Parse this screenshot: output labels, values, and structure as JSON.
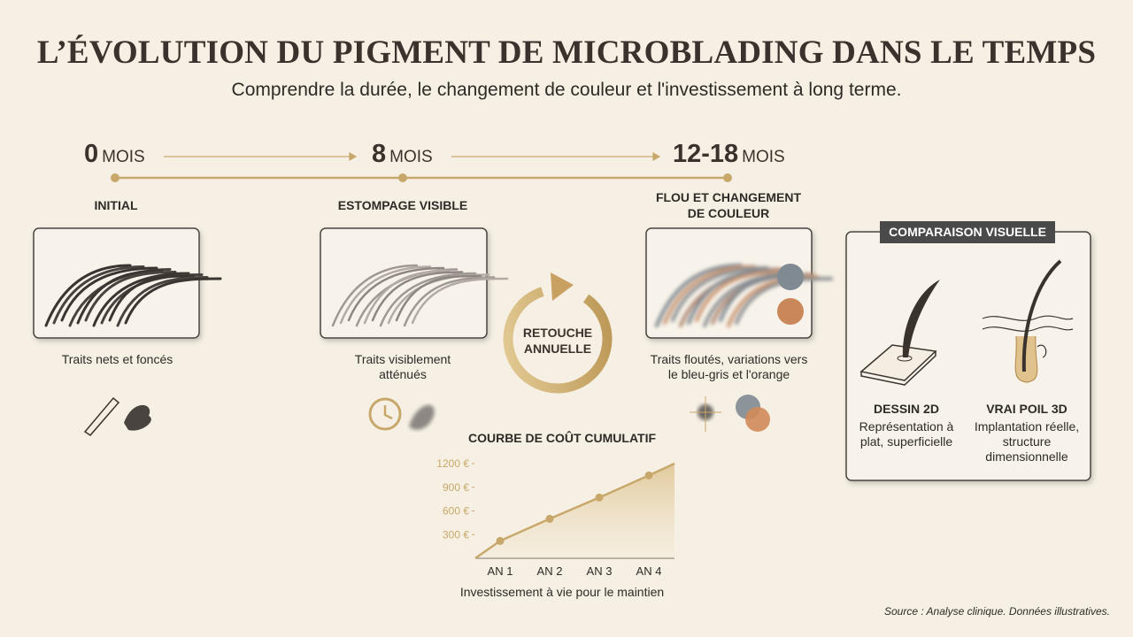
{
  "header": {
    "title": "L’ÉVOLUTION DU PIGMENT DE MICROBLADING DANS LE TEMPS",
    "subtitle": "Comprendre la durée, le changement de couleur et l'investissement à long terme."
  },
  "timeline": [
    {
      "number": "0",
      "unit": "MOIS",
      "label": "INITIAL",
      "caption": "Traits nets et foncés"
    },
    {
      "number": "8",
      "unit": "MOIS",
      "label": "ESTOMPAGE VISIBLE",
      "caption": "Traits visiblement atténués"
    },
    {
      "number": "12-18",
      "unit": "MOIS",
      "label": "FLOU ET CHANGEMENT DE COULEUR",
      "caption": "Traits floutés, variations vers le bleu-gris et l'orange"
    }
  ],
  "retouch": "RETOUCHE ANNUELLE",
  "comparison": {
    "title": "COMPARAISON VISUELLE",
    "items": [
      {
        "title": "DESSIN 2D",
        "text": "Représentation à plat, superficielle"
      },
      {
        "title": "VRAI POIL 3D",
        "text": "Implantation réelle, structure dimensionnelle"
      }
    ]
  },
  "chart_data": {
    "type": "line",
    "title": "COURBE DE COÛT CUMULATIF",
    "x_label": "Investissement à vie pour le maintien",
    "categories": [
      "AN 1",
      "AN 2",
      "AN 3",
      "AN 4"
    ],
    "values": [
      220,
      500,
      770,
      1050
    ],
    "color": "#c8a86a",
    "ylim": [
      0,
      1200
    ],
    "yticks": [
      {
        "value": 300,
        "label": "300 €"
      },
      {
        "value": 600,
        "label": "600 €"
      },
      {
        "value": 900,
        "label": "900 €"
      },
      {
        "value": 1200,
        "label": "1200 €"
      }
    ]
  },
  "source": "Source : Analyse clinique. Données illustratives."
}
